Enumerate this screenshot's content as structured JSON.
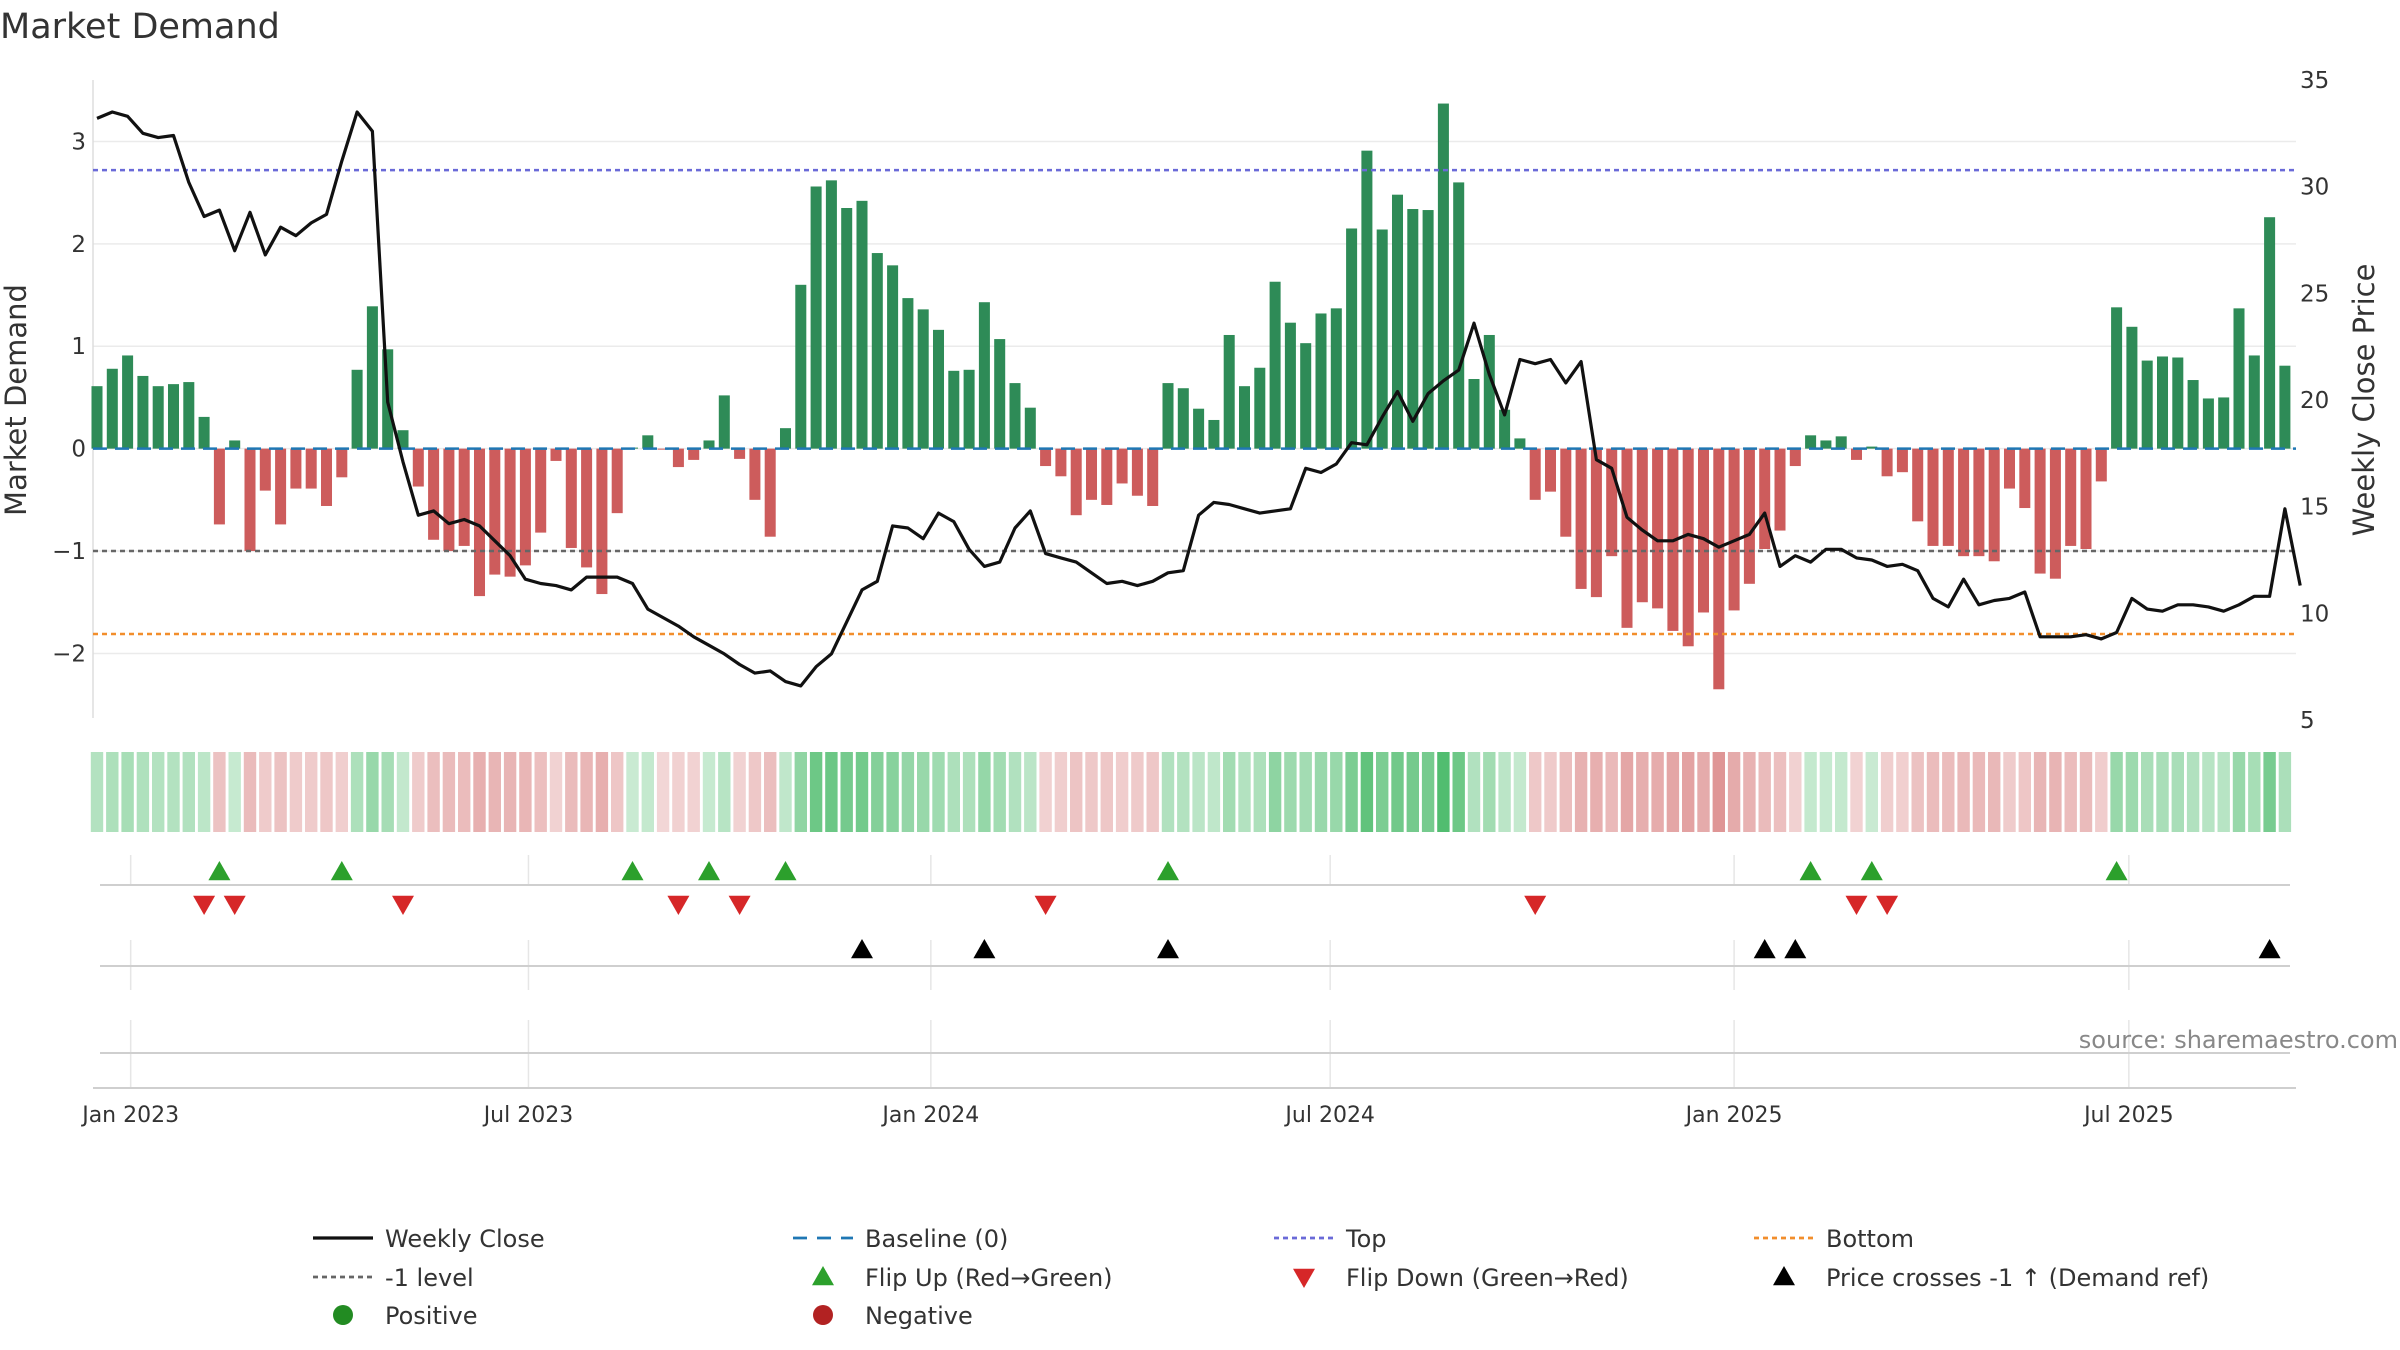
{
  "chart_data": {
    "type": "bar",
    "title": "Market Demand",
    "ylabel": "Market Demand",
    "ylabel_right": "Weekly Close Price",
    "source": "source: sharemaestro.com",
    "ylim": [
      -2.65,
      3.6
    ],
    "ylim_right": [
      5,
      35
    ],
    "yticks_left": [
      {
        "v": 3,
        "label": "3"
      },
      {
        "v": 2,
        "label": "2"
      },
      {
        "v": 1,
        "label": "1"
      },
      {
        "v": 0,
        "label": "0"
      },
      {
        "v": -1,
        "label": "−1"
      },
      {
        "v": -2,
        "label": "−2"
      }
    ],
    "yticks_right": [
      {
        "v": 35,
        "label": "35"
      },
      {
        "v": 30,
        "label": "30"
      },
      {
        "v": 25,
        "label": "25"
      },
      {
        "v": 20,
        "label": "20"
      },
      {
        "v": 15,
        "label": "15"
      },
      {
        "v": 10,
        "label": "10"
      },
      {
        "v": 5,
        "label": "5"
      }
    ],
    "xticks": [
      {
        "week": 2.2,
        "label": "Jan 2023"
      },
      {
        "week": 28.2,
        "label": "Jul 2023"
      },
      {
        "week": 54.5,
        "label": "Jan 2024"
      },
      {
        "week": 80.6,
        "label": "Jul 2024"
      },
      {
        "week": 107,
        "label": "Jan 2025"
      },
      {
        "week": 132.8,
        "label": "Jul 2025"
      }
    ],
    "levels": {
      "top": 2.72,
      "bottom": -1.81,
      "minus_one": -1.0,
      "baseline": 0
    },
    "colors": {
      "positive": "#2e8b57",
      "negative": "#cd5c5c",
      "price": "#111111",
      "baseline": "#1f77b4",
      "top": "#6a6ad8",
      "minus_one": "#666666",
      "bottom": "#f28e2b",
      "flip_up": "#2ca02c",
      "flip_down": "#d62728",
      "cross": "#000000",
      "legend_positive": "#228b22",
      "legend_negative": "#b22222"
    },
    "series": [
      {
        "name": "Market Demand",
        "values": [
          0.61,
          0.78,
          0.91,
          0.71,
          0.61,
          0.63,
          0.65,
          0.31,
          -0.74,
          0.08,
          -1.0,
          -0.41,
          -0.74,
          -0.39,
          -0.39,
          -0.56,
          -0.28,
          0.77,
          1.39,
          0.97,
          0.18,
          -0.37,
          -0.89,
          -1.0,
          -0.95,
          -1.44,
          -1.23,
          -1.25,
          -1.14,
          -0.82,
          -0.12,
          -0.97,
          -1.16,
          -1.42,
          -0.63,
          0.01,
          0.13,
          -0.01,
          -0.18,
          -0.11,
          0.08,
          0.52,
          -0.1,
          -0.5,
          -0.86,
          0.2,
          1.6,
          2.56,
          2.62,
          2.35,
          2.42,
          1.91,
          1.79,
          1.47,
          1.36,
          1.16,
          0.76,
          0.77,
          1.43,
          1.07,
          0.64,
          0.4,
          -0.17,
          -0.27,
          -0.65,
          -0.5,
          -0.55,
          -0.34,
          -0.46,
          -0.56,
          0.64,
          0.59,
          0.39,
          0.28,
          1.11,
          0.61,
          0.79,
          1.63,
          1.23,
          1.03,
          1.32,
          1.37,
          2.15,
          2.91,
          2.14,
          2.48,
          2.34,
          2.33,
          3.37,
          2.6,
          0.68,
          1.11,
          0.38,
          0.1,
          -0.5,
          -0.42,
          -0.86,
          -1.37,
          -1.45,
          -1.05,
          -1.75,
          -1.5,
          -1.56,
          -1.78,
          -1.93,
          -1.6,
          -2.35,
          -1.58,
          -1.32,
          -0.98,
          -0.8,
          -0.17,
          0.13,
          0.08,
          0.12,
          -0.11,
          0.02,
          -0.27,
          -0.23,
          -0.71,
          -0.95,
          -0.95,
          -1.05,
          -1.05,
          -1.1,
          -0.39,
          -0.58,
          -1.22,
          -1.27,
          -0.95,
          -0.98,
          -0.32,
          1.38,
          1.19,
          0.86,
          0.9,
          0.89,
          0.67,
          0.49,
          0.5,
          1.37,
          0.91,
          2.26,
          0.81
        ]
      },
      {
        "name": "Weekly Close",
        "values": [
          33.2,
          33.5,
          33.3,
          32.5,
          32.3,
          32.4,
          30.2,
          28.6,
          28.9,
          27.0,
          28.8,
          26.8,
          28.1,
          27.7,
          28.3,
          28.7,
          31.2,
          33.5,
          32.6,
          19.9,
          17.1,
          14.6,
          14.8,
          14.2,
          14.4,
          14.1,
          13.4,
          12.7,
          11.6,
          11.4,
          11.3,
          11.1,
          11.7,
          11.7,
          11.7,
          11.4,
          10.2,
          9.8,
          9.4,
          8.9,
          8.5,
          8.1,
          7.6,
          7.2,
          7.3,
          6.8,
          6.6,
          7.5,
          8.1,
          9.6,
          11.1,
          11.5,
          14.1,
          14.0,
          13.5,
          14.7,
          14.3,
          13.0,
          12.2,
          12.4,
          14.0,
          14.8,
          12.8,
          12.6,
          12.4,
          11.9,
          11.4,
          11.5,
          11.3,
          11.5,
          11.9,
          12.0,
          14.6,
          15.2,
          15.1,
          14.9,
          14.7,
          14.8,
          14.9,
          16.8,
          16.6,
          17.0,
          18.0,
          17.9,
          19.2,
          20.4,
          19.0,
          20.3,
          20.9,
          21.4,
          23.6,
          21.2,
          19.3,
          21.9,
          21.7,
          21.9,
          20.8,
          21.8,
          17.2,
          16.8,
          14.5,
          13.9,
          13.4,
          13.4,
          13.7,
          13.5,
          13.1,
          13.4,
          13.7,
          14.7,
          12.2,
          12.7,
          12.4,
          13.0,
          13.0,
          12.6,
          12.5,
          12.2,
          12.3,
          12.0,
          10.7,
          10.3,
          11.6,
          10.4,
          10.6,
          10.7,
          11.0,
          8.9,
          8.9,
          8.9,
          9.0,
          8.8,
          9.1,
          10.7,
          10.2,
          10.1,
          10.4,
          10.4,
          10.3,
          10.1,
          10.4,
          10.8,
          10.8,
          14.9,
          11.3
        ]
      }
    ],
    "flip_up_weeks": [
      8,
      16,
      35,
      40,
      45,
      70,
      112,
      116,
      132
    ],
    "flip_down_weeks": [
      7,
      9,
      20,
      38,
      42,
      62,
      94,
      115,
      117
    ],
    "cross_weeks": [
      50,
      58,
      70,
      109,
      111,
      142
    ],
    "legend": [
      {
        "key": "weekly_close",
        "label": "Weekly Close"
      },
      {
        "key": "baseline",
        "label": "Baseline (0)"
      },
      {
        "key": "top",
        "label": "Top"
      },
      {
        "key": "bottom",
        "label": "Bottom"
      },
      {
        "key": "minus_one",
        "label": "-1 level"
      },
      {
        "key": "flip_up",
        "label": "Flip Up (Red→Green)"
      },
      {
        "key": "flip_down",
        "label": "Flip Down (Green→Red)"
      },
      {
        "key": "cross",
        "label": "Price crosses -1 ↑ (Demand ref)"
      },
      {
        "key": "positive",
        "label": "Positive"
      },
      {
        "key": "negative",
        "label": "Negative"
      }
    ]
  }
}
